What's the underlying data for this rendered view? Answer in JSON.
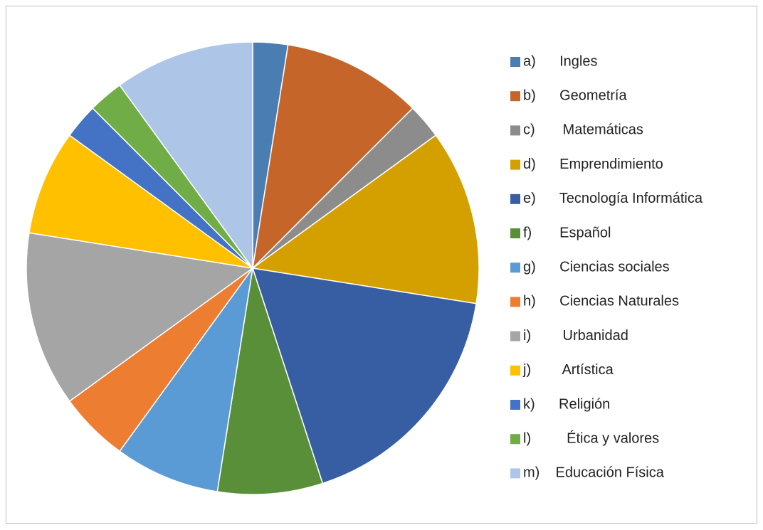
{
  "chart_data": {
    "type": "pie",
    "series": [
      {
        "categories": [
          "a)      Ingles",
          "b)      Geometría",
          "c)       Matemáticas",
          "d)      Emprendimiento",
          "e)      Tecnología Informática",
          "f)       Español",
          "g)      Ciencias sociales",
          "h)      Ciencias Naturales",
          "i)        Urbanidad",
          "j)        Artística",
          "k)      Religión",
          "l)         Ética y valores",
          "m)    Educación Física"
        ],
        "values": [
          2.5,
          10,
          2.5,
          12.5,
          17.5,
          7.5,
          7.5,
          5,
          12.5,
          7.5,
          2.5,
          2.5,
          10
        ],
        "colors": [
          "#4a7eb3",
          "#c5652a",
          "#8c8c8c",
          "#d4a000",
          "#375ea3",
          "#5a8f3a",
          "#5b9bd5",
          "#ed7d31",
          "#a5a5a5",
          "#ffc000",
          "#4472c4",
          "#70ad47",
          "#adc6e8"
        ]
      }
    ],
    "legend": "right"
  }
}
